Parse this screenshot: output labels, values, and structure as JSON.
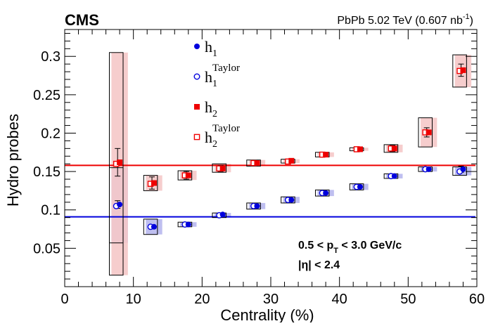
{
  "chart_data": {
    "type": "scatter",
    "title": "CMS",
    "subtitle_main": "PbPb 5.02 TeV (0.607 nb",
    "subtitle_sup": "-1",
    "subtitle_end": ")",
    "xlabel": "Centrality (%)",
    "ylabel": "Hydro probes",
    "xlim": [
      0,
      60
    ],
    "ylim": [
      0,
      0.335
    ],
    "x_ticks": [
      0,
      10,
      20,
      30,
      40,
      50,
      60
    ],
    "y_ticks": [
      0.05,
      0.1,
      0.15,
      0.2,
      0.25,
      0.3
    ],
    "annotation_line1_pre": "0.5 < p",
    "annotation_line1_sub": "T",
    "annotation_line1_post": " < 3.0 GeV/c",
    "annotation_line2": "|η| < 2.4",
    "legend_placement": "top-center",
    "series": [
      {
        "name": "h",
        "name_sub": "1",
        "name_sup": "",
        "marker": "filled-circle",
        "color": "#0000dd",
        "x": [
          8,
          13,
          18,
          23,
          28,
          33,
          38,
          43,
          48,
          53,
          58
        ],
        "y": [
          0.107,
          0.078,
          0.081,
          0.094,
          0.105,
          0.113,
          0.122,
          0.13,
          0.144,
          0.153,
          0.153
        ]
      },
      {
        "name": "h",
        "name_sub": "1",
        "name_sup": "Taylor",
        "marker": "open-circle",
        "color": "#0000dd",
        "x": [
          7.5,
          12.5,
          17.5,
          22.5,
          27.5,
          32.5,
          37.5,
          42.5,
          47.5,
          52.5,
          57.5
        ],
        "y": [
          0.105,
          0.078,
          0.081,
          0.093,
          0.105,
          0.113,
          0.122,
          0.13,
          0.144,
          0.153,
          0.15
        ],
        "band_fill": "#b8b8ee",
        "band_lo": [
          0.057,
          0.068,
          0.078,
          0.09,
          0.101,
          0.109,
          0.118,
          0.126,
          0.141,
          0.15,
          0.145
        ],
        "band_hi": [
          0.155,
          0.088,
          0.084,
          0.096,
          0.109,
          0.117,
          0.126,
          0.134,
          0.147,
          0.156,
          0.156
        ]
      },
      {
        "name": "h",
        "name_sub": "2",
        "name_sup": "",
        "marker": "filled-square",
        "color": "#ee0000",
        "x": [
          8,
          13,
          18,
          23,
          28,
          33,
          38,
          43,
          48,
          53,
          58
        ],
        "y": [
          0.162,
          0.135,
          0.145,
          0.154,
          0.161,
          0.164,
          0.172,
          0.179,
          0.18,
          0.201,
          0.282
        ]
      },
      {
        "name": "h",
        "name_sub": "2",
        "name_sup": "Taylor",
        "marker": "open-square",
        "color": "#ee0000",
        "x": [
          7.5,
          12.5,
          17.5,
          22.5,
          27.5,
          32.5,
          37.5,
          42.5,
          47.5,
          52.5,
          57.5
        ],
        "y": [
          0.16,
          0.134,
          0.145,
          0.154,
          0.161,
          0.163,
          0.172,
          0.179,
          0.18,
          0.201,
          0.281
        ],
        "band_fill": "#f5c8c8",
        "band_lo": [
          0.015,
          0.125,
          0.139,
          0.149,
          0.157,
          0.161,
          0.169,
          0.177,
          0.175,
          0.182,
          0.26
        ],
        "band_hi": [
          0.305,
          0.145,
          0.151,
          0.16,
          0.165,
          0.166,
          0.175,
          0.181,
          0.185,
          0.22,
          0.302
        ]
      }
    ],
    "sys_box_lo_h1": [
      0.057,
      0.068,
      0.078,
      0.09,
      0.101,
      0.109,
      0.118,
      0.126,
      0.141,
      0.15,
      0.145
    ],
    "sys_box_hi_h1": [
      0.155,
      0.088,
      0.084,
      0.096,
      0.109,
      0.117,
      0.126,
      0.134,
      0.147,
      0.156,
      0.156
    ],
    "sys_box_lo_h2": [
      0.015,
      0.125,
      0.139,
      0.149,
      0.157,
      0.161,
      0.169,
      0.177,
      0.175,
      0.182,
      0.26
    ],
    "sys_box_hi_h2": [
      0.305,
      0.145,
      0.151,
      0.16,
      0.165,
      0.166,
      0.175,
      0.181,
      0.185,
      0.22,
      0.302
    ],
    "stat_err_h2": [
      0.018,
      0.008,
      0.005,
      0.004,
      0.003,
      0.002,
      0.002,
      0.002,
      0.004,
      0.006,
      0.008
    ],
    "stat_err_h1": [
      0.005,
      0.002,
      0.002,
      0.002,
      0.002,
      0.002,
      0.002,
      0.002,
      0.002,
      0.002,
      0.004
    ],
    "ref_lines": [
      {
        "y": 0.091,
        "color": "#0000dd"
      },
      {
        "y": 0.158,
        "color": "#ee0000"
      }
    ]
  }
}
